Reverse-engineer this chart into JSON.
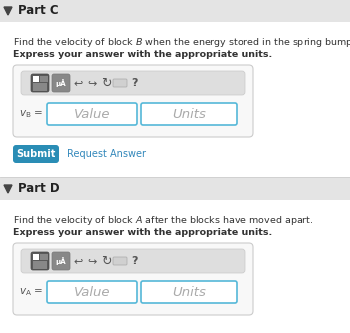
{
  "bg_color": "#f0f0f0",
  "white": "#ffffff",
  "part_c_title": "Part C",
  "part_d_title": "Part D",
  "part_c_text1": "Find the velocity of block $B$ when the energy stored in the spring bumpers is maximum.",
  "part_c_text2": "Express your answer with the appropriate units.",
  "part_d_text1": "Find the velocity of block $A$ after the blocks have moved apart.",
  "part_d_text2": "Express your answer with the appropriate units.",
  "value_placeholder": "Value",
  "units_placeholder": "Units",
  "submit_text": "Submit",
  "request_text": "Request Answer",
  "submit_color": "#2a8db5",
  "link_color": "#3388bb",
  "input_border_color": "#55b8d8",
  "text_color": "#333333",
  "placeholder_color": "#aaaaaa",
  "header_bg": "#e8e8e8",
  "box_bg": "#f8f8f8",
  "toolbar_bg": "#dedede",
  "btn1_color": "#666666",
  "btn2_color": "#888888"
}
